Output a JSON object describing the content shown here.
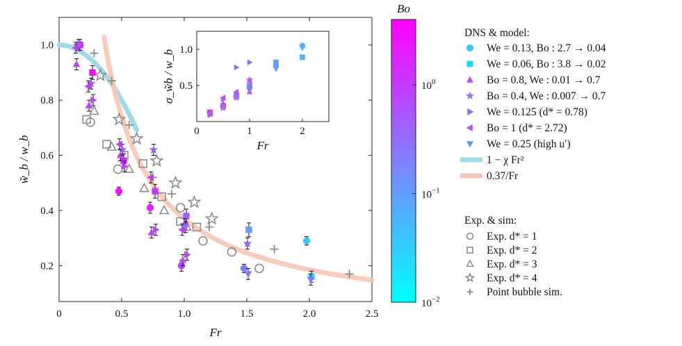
{
  "chart_data": {
    "type": "scatter",
    "main": {
      "xlabel": "Fr",
      "ylabel": "w̃_b / w_b",
      "xlim": [
        0,
        2.5
      ],
      "ylim": [
        0.07,
        1.1
      ],
      "xticks": [
        "0",
        "0.5",
        "1.0",
        "1.5",
        "2.0",
        "2.5"
      ],
      "xtick_values": [
        0,
        0.5,
        1.0,
        1.5,
        2.0,
        2.5
      ],
      "yticks": [
        "0.2",
        "0.4",
        "0.6",
        "0.8",
        "1.0"
      ],
      "ytick_values": [
        0.2,
        0.4,
        0.6,
        0.8,
        1.0
      ]
    },
    "colorbar": {
      "label": "Bo",
      "scale": "log",
      "range": [
        0.01,
        4
      ],
      "ticks": [
        {
          "value": 0.01,
          "base": "10",
          "exp": "−2"
        },
        {
          "value": 0.1,
          "base": "10",
          "exp": "−1"
        },
        {
          "value": 1,
          "base": "10",
          "exp": "0"
        }
      ],
      "colors": [
        "#00ffff",
        "#ff00ff"
      ]
    },
    "curves": [
      {
        "name": "1 − χ Fr²",
        "color": "#9fdbe6",
        "chi": 0.8,
        "x_range": [
          0,
          0.62
        ]
      },
      {
        "name": "0.37/Fr",
        "color": "#f7c6b4",
        "k": 0.37,
        "x_range": [
          0.36,
          2.5
        ]
      }
    ],
    "dns_series": [
      {
        "key": "s1",
        "marker": "circle",
        "points": [
          {
            "fr": 0.5,
            "y": 0.47,
            "bo": 2.7,
            "err": 0.01
          },
          {
            "fr": 0.75,
            "y": 0.41,
            "bo": 1.5,
            "err": 0.015
          },
          {
            "fr": 1.0,
            "y": 0.2,
            "bo": 0.8,
            "err": 0.015
          },
          {
            "fr": 1.5,
            "y": 0.19,
            "bo": 0.2,
            "err": 0.01
          },
          {
            "fr": 2.0,
            "y": 0.29,
            "bo": 0.04,
            "err": 0.01
          }
        ]
      },
      {
        "key": "s2",
        "marker": "square",
        "points": [
          {
            "fr": 0.15,
            "y": 1.0,
            "bo": 3.8,
            "err": 0.015
          },
          {
            "fr": 0.25,
            "y": 0.9,
            "bo": 3.2,
            "err": 0.02
          },
          {
            "fr": 0.5,
            "y": 0.58,
            "bo": 2.0,
            "err": 0.02
          },
          {
            "fr": 0.75,
            "y": 0.47,
            "bo": 1.0,
            "err": 0.02
          },
          {
            "fr": 1.0,
            "y": 0.38,
            "bo": 0.4,
            "err": 0.02
          },
          {
            "fr": 1.5,
            "y": 0.33,
            "bo": 0.1,
            "err": 0.02
          },
          {
            "fr": 2.0,
            "y": 0.16,
            "bo": 0.02,
            "err": 0.015
          }
        ]
      },
      {
        "key": "s3",
        "marker": "triangle-up",
        "points": [
          {
            "fr": 0.15,
            "y": 0.93,
            "bo": 0.8,
            "err": 0.015
          },
          {
            "fr": 0.25,
            "y": 0.78,
            "bo": 0.8,
            "err": 0.015
          },
          {
            "fr": 0.5,
            "y": 0.6,
            "bo": 0.8,
            "err": 0.015
          },
          {
            "fr": 0.75,
            "y": 0.32,
            "bo": 0.8,
            "err": 0.015
          },
          {
            "fr": 1.0,
            "y": 0.22,
            "bo": 0.8,
            "err": 0.015
          }
        ]
      },
      {
        "key": "s4",
        "marker": "star",
        "points": [
          {
            "fr": 0.15,
            "y": 1.0,
            "bo": 0.4,
            "err": 0.015
          },
          {
            "fr": 0.25,
            "y": 0.86,
            "bo": 0.4,
            "err": 0.015
          },
          {
            "fr": 0.5,
            "y": 0.62,
            "bo": 0.4,
            "err": 0.015
          },
          {
            "fr": 0.75,
            "y": 0.62,
            "bo": 0.4,
            "err": 0.015
          },
          {
            "fr": 1.0,
            "y": 0.35,
            "bo": 0.4,
            "err": 0.015
          },
          {
            "fr": 1.5,
            "y": 0.28,
            "bo": 0.4,
            "err": 0.015
          }
        ]
      },
      {
        "key": "s5",
        "marker": "triangle-right",
        "points": [
          {
            "fr": 0.25,
            "y": 0.8,
            "bo": 0.78,
            "err": 0.015
          },
          {
            "fr": 0.5,
            "y": 0.56,
            "bo": 0.78,
            "err": 0.015
          },
          {
            "fr": 0.75,
            "y": 0.33,
            "bo": 0.78,
            "err": 0.015
          },
          {
            "fr": 1.0,
            "y": 0.24,
            "bo": 0.78,
            "err": 0.015
          }
        ]
      },
      {
        "key": "s6",
        "marker": "triangle-left",
        "points": [
          {
            "fr": 0.15,
            "y": 0.99,
            "bo": 1.0,
            "err": 0.015
          },
          {
            "fr": 0.25,
            "y": 0.85,
            "bo": 1.0,
            "err": 0.015
          },
          {
            "fr": 0.5,
            "y": 0.64,
            "bo": 1.0,
            "err": 0.015
          },
          {
            "fr": 0.75,
            "y": 0.52,
            "bo": 1.0,
            "err": 0.015
          },
          {
            "fr": 1.0,
            "y": 0.33,
            "bo": 1.0,
            "err": 0.015
          }
        ]
      },
      {
        "key": "s7",
        "marker": "triangle-down",
        "points": [
          {
            "fr": 1.0,
            "y": 0.34,
            "bo": 0.3,
            "err": 0.015
          },
          {
            "fr": 1.5,
            "y": 0.17,
            "bo": 0.3,
            "err": 0.015
          },
          {
            "fr": 2.0,
            "y": 0.15,
            "bo": 0.3,
            "err": 0.015
          }
        ]
      }
    ],
    "exp_series": [
      {
        "key": "d1",
        "marker": "circle-open",
        "points": [
          [
            0.25,
            0.72
          ],
          [
            0.47,
            0.55
          ],
          [
            0.97,
            0.41
          ],
          [
            1.15,
            0.29
          ],
          [
            1.38,
            0.25
          ],
          [
            1.6,
            0.19
          ]
        ]
      },
      {
        "key": "d2",
        "marker": "square-open",
        "points": [
          [
            0.22,
            0.73
          ],
          [
            0.38,
            0.64
          ],
          [
            0.52,
            0.6
          ],
          [
            0.67,
            0.57
          ],
          [
            0.82,
            0.45
          ],
          [
            0.97,
            0.36
          ],
          [
            1.1,
            0.34
          ]
        ]
      },
      {
        "key": "d3",
        "marker": "triangle-open",
        "points": [
          [
            0.28,
            0.76
          ],
          [
            0.42,
            0.63
          ],
          [
            0.56,
            0.55
          ],
          [
            0.68,
            0.48
          ],
          [
            0.84,
            0.4
          ],
          [
            1.02,
            0.34
          ]
        ]
      },
      {
        "key": "d4",
        "marker": "star-open",
        "points": [
          [
            0.33,
            0.89
          ],
          [
            0.48,
            0.73
          ],
          [
            0.62,
            0.66
          ],
          [
            0.78,
            0.58
          ],
          [
            0.93,
            0.5
          ],
          [
            1.08,
            0.43
          ],
          [
            1.22,
            0.37
          ]
        ]
      },
      {
        "key": "pb",
        "marker": "plus",
        "points": [
          [
            0.15,
            1.0
          ],
          [
            0.28,
            0.97
          ],
          [
            0.42,
            0.87
          ],
          [
            0.56,
            0.71
          ],
          [
            0.75,
            0.52
          ],
          [
            0.9,
            0.46
          ],
          [
            1.2,
            0.34
          ],
          [
            1.72,
            0.26
          ],
          [
            2.32,
            0.17
          ]
        ]
      }
    ],
    "inset": {
      "xlabel": "Fr",
      "ylabel": "σ_w̃b / w_b",
      "xlim": [
        0,
        2.5
      ],
      "ylim": [
        0.0,
        1.25
      ],
      "xticks": [
        "0",
        "1",
        "2"
      ],
      "xtick_values": [
        0,
        1,
        2
      ],
      "yticks": [
        "0.5",
        "1.0"
      ],
      "ytick_values": [
        0.5,
        1.0
      ],
      "series": [
        {
          "ref": "s1",
          "points": [
            [
              0.25,
              0.12
            ],
            [
              0.5,
              0.2
            ],
            [
              0.75,
              0.35
            ],
            [
              1.0,
              0.48
            ],
            [
              1.5,
              0.78
            ],
            [
              2.0,
              1.05
            ]
          ]
        },
        {
          "ref": "s2",
          "points": [
            [
              0.25,
              0.13
            ],
            [
              0.5,
              0.22
            ],
            [
              0.75,
              0.37
            ],
            [
              1.0,
              0.5
            ],
            [
              1.5,
              0.82
            ],
            [
              2.0,
              0.89
            ]
          ]
        },
        {
          "ref": "s3",
          "points": [
            [
              0.25,
              0.1
            ],
            [
              0.5,
              0.25
            ],
            [
              0.75,
              0.34
            ],
            [
              1.0,
              0.41
            ]
          ]
        },
        {
          "ref": "s4",
          "points": [
            [
              0.25,
              0.11
            ],
            [
              0.5,
              0.19
            ],
            [
              0.75,
              0.33
            ],
            [
              1.0,
              0.58
            ]
          ]
        },
        {
          "ref": "s5",
          "points": [
            [
              0.25,
              0.09
            ],
            [
              0.5,
              0.31
            ],
            [
              0.75,
              0.75
            ],
            [
              1.0,
              0.82
            ]
          ]
        },
        {
          "ref": "s6",
          "points": [
            [
              0.25,
              0.12
            ],
            [
              0.5,
              0.33
            ],
            [
              0.75,
              0.41
            ],
            [
              1.0,
              0.56
            ]
          ]
        },
        {
          "ref": "s7",
          "points": [
            [
              1.0,
              0.43
            ],
            [
              1.5,
              0.73
            ],
            [
              2.0,
              1.02
            ]
          ]
        }
      ]
    }
  },
  "legend": {
    "dns_title": "DNS & model:",
    "dns_items": [
      {
        "marker": "circle",
        "color": "#2ec8ff",
        "text": "We = 0.13, Bo : 2.7 → 0.04"
      },
      {
        "marker": "square",
        "color": "#17d6f2",
        "text": "We = 0.06, Bo : 3.8 → 0.02"
      },
      {
        "marker": "triangle-up",
        "color": "#c44df5",
        "text": "Bo = 0.8, We : 0.01 → 0.7"
      },
      {
        "marker": "star",
        "color": "#9e72ee",
        "text": "Bo = 0.4, We : 0.007 → 0.7"
      },
      {
        "marker": "triangle-right",
        "color": "#8a73f2",
        "text": "We = 0.125 (d* = 0.78)"
      },
      {
        "marker": "triangle-left",
        "color": "#c44df5",
        "text": "Bo = 1 (d* = 2.72)"
      },
      {
        "marker": "triangle-down",
        "color": "#4ea0f5",
        "text": "We = 0.25 (high u′)"
      }
    ],
    "curve_items": [
      {
        "color": "#9fdbe6",
        "text": "1 − χ Fr²"
      },
      {
        "color": "#f7c6b4",
        "text": "0.37/Fr"
      }
    ],
    "exp_title": "Exp. & sim:",
    "exp_items": [
      {
        "marker": "circle-open",
        "text": "Exp. d* = 1"
      },
      {
        "marker": "square-open",
        "text": "Exp. d* = 2"
      },
      {
        "marker": "triangle-open",
        "text": "Exp. d* = 3"
      },
      {
        "marker": "star-open",
        "text": "Exp. d* = 4"
      },
      {
        "marker": "plus",
        "text": "Point bubble sim."
      }
    ]
  }
}
